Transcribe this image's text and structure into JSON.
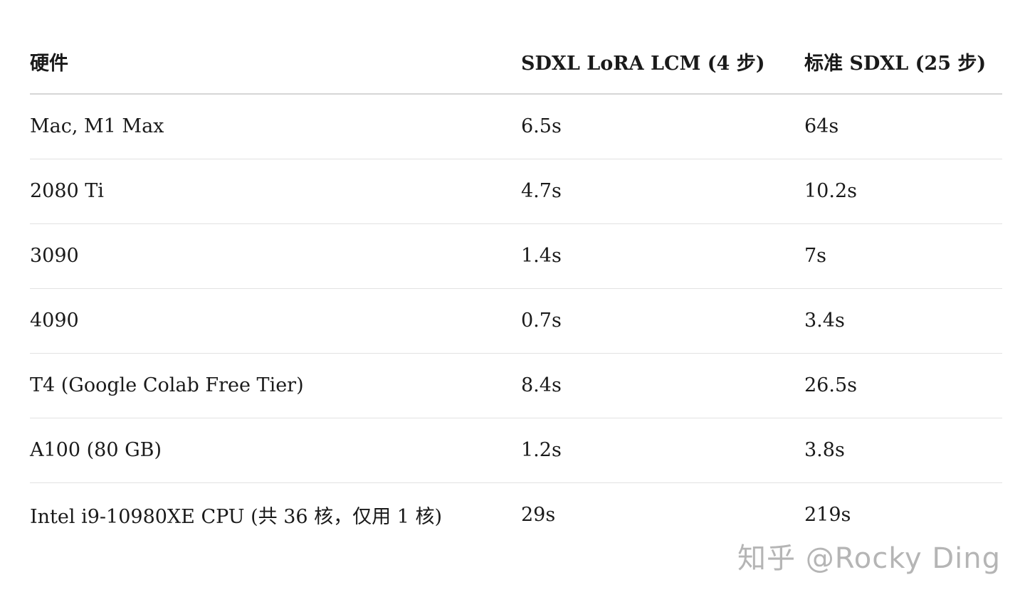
{
  "table": {
    "headers": [
      "硬件",
      "SDXL LoRA LCM (4 步)",
      "标准 SDXL (25 步)"
    ],
    "rows": [
      [
        "Mac, M1 Max",
        "6.5s",
        "64s"
      ],
      [
        "2080 Ti",
        "4.7s",
        "10.2s"
      ],
      [
        "3090",
        "1.4s",
        "7s"
      ],
      [
        "4090",
        "0.7s",
        "3.4s"
      ],
      [
        "T4 (Google Colab Free Tier)",
        "8.4s",
        "26.5s"
      ],
      [
        "A100 (80 GB)",
        "1.2s",
        "3.8s"
      ],
      [
        "Intel i9-10980XE CPU (共 36 核，仅用 1 核)",
        "29s",
        "219s"
      ]
    ]
  },
  "watermark": "知乎 @Rocky Ding"
}
